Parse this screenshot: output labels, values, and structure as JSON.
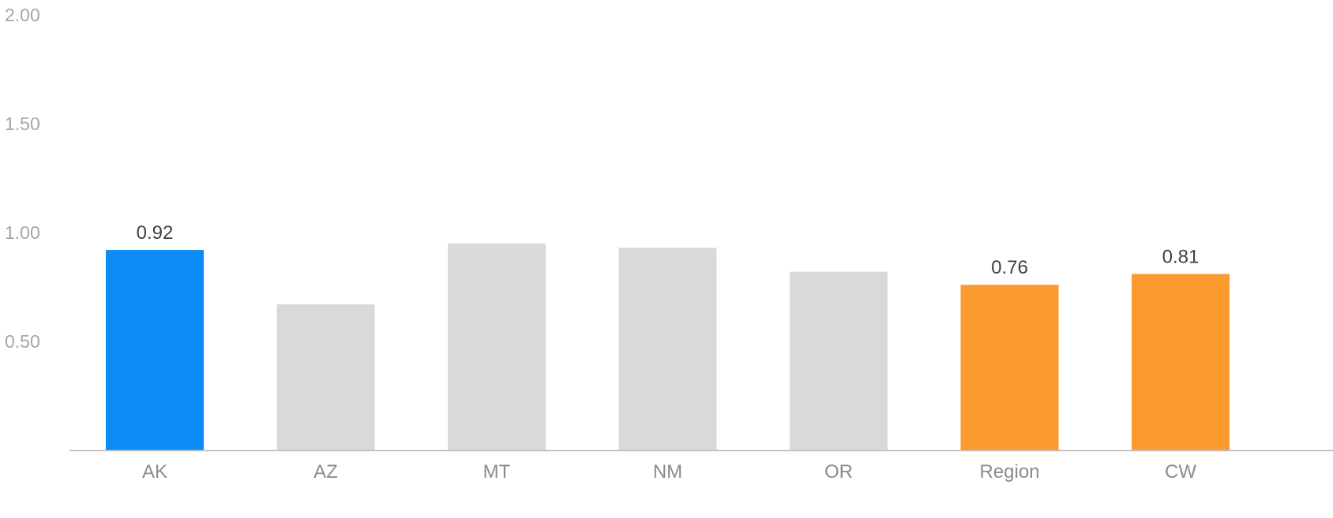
{
  "chart_data": {
    "type": "bar",
    "title": "",
    "xlabel": "",
    "ylabel": "",
    "categories": [
      "AK",
      "AZ",
      "MT",
      "NM",
      "OR",
      "Region",
      "CW"
    ],
    "values": [
      0.92,
      0.67,
      0.95,
      0.93,
      0.82,
      0.76,
      0.81
    ],
    "data_labels": [
      "0.92",
      "",
      "",
      "",
      "",
      "0.76",
      "0.81"
    ],
    "bar_colors": [
      "#0a8bf5",
      "#d9d9d9",
      "#d9d9d9",
      "#d9d9d9",
      "#d9d9d9",
      "#fb9a2e",
      "#fb9a2e"
    ],
    "ylim": [
      0,
      2.0
    ],
    "yticks": [
      0.5,
      1.0,
      1.5,
      2.0
    ],
    "ytick_labels": [
      "0.50",
      "1.00",
      "1.50",
      "2.00"
    ],
    "grid": false,
    "legend": "none"
  },
  "colors": {
    "highlight": "#0a8bf5",
    "comparison": "#fb9a2e",
    "other": "#d9d9d9",
    "axis_line": "#bfbfbf"
  }
}
